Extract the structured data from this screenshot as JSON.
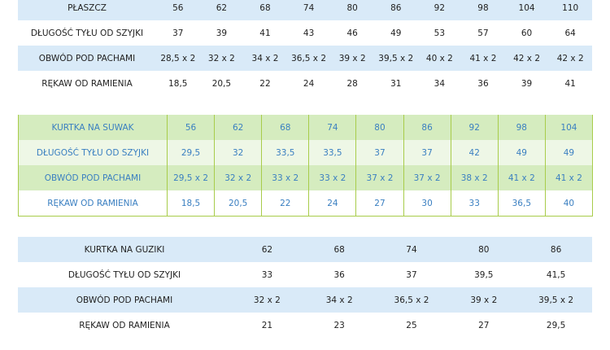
{
  "tables": [
    {
      "header": [
        "PŁASZCZ",
        "56",
        "62",
        "68",
        "74",
        "80",
        "86",
        "92",
        "98",
        "104",
        "110"
      ],
      "rows": [
        [
          "DŁUGOŚĆ TYŁU OD SZYJKI",
          "37",
          "39",
          "41",
          "43",
          "46",
          "49",
          "53",
          "57",
          "60",
          "64"
        ],
        [
          "OBWÓD POD PACHAMI",
          "28,5 x 2",
          "32 x 2",
          "34 x 2",
          "36,5 x 2",
          "39 x 2",
          "39,5 x 2",
          "40 x 2",
          "41 x 2",
          "42 x 2",
          "42 x 2"
        ],
        [
          "RĘKAW OD RAMIENIA",
          "18,5",
          "20,5",
          "22",
          "24",
          "28",
          "31",
          "34",
          "36",
          "39",
          "41"
        ]
      ]
    },
    {
      "header": [
        "KURTKA NA SUWAK",
        "56",
        "62",
        "68",
        "74",
        "80",
        "86",
        "92",
        "98",
        "104"
      ],
      "rows": [
        [
          "DŁUGOŚĆ TYŁU OD SZYJKI",
          "29,5",
          "32",
          "33,5",
          "33,5",
          "37",
          "37",
          "42",
          "49",
          "49"
        ],
        [
          "OBWÓD POD PACHAMI",
          "29,5 x 2",
          "32 x 2",
          "33 x 2",
          "33 x 2",
          "37 x 2",
          "37 x 2",
          "38 x 2",
          "41 x 2",
          "41 x 2"
        ],
        [
          "RĘKAW OD RAMIENIA",
          "18,5",
          "20,5",
          "22",
          "24",
          "27",
          "30",
          "33",
          "36,5",
          "40"
        ]
      ]
    },
    {
      "header": [
        "KURTKA NA GUZIKI",
        "62",
        "68",
        "74",
        "80",
        "86"
      ],
      "rows": [
        [
          "DŁUGOŚĆ TYŁU OD SZYJKI",
          "33",
          "36",
          "37",
          "39,5",
          "41,5"
        ],
        [
          "OBWÓD POD PACHAMI",
          "32 x 2",
          "34 x 2",
          "36,5 x 2",
          "39 x 2",
          "39,5 x 2"
        ],
        [
          "RĘKAW OD RAMIENIA",
          "21",
          "23",
          "25",
          "27",
          "29,5"
        ]
      ]
    }
  ]
}
